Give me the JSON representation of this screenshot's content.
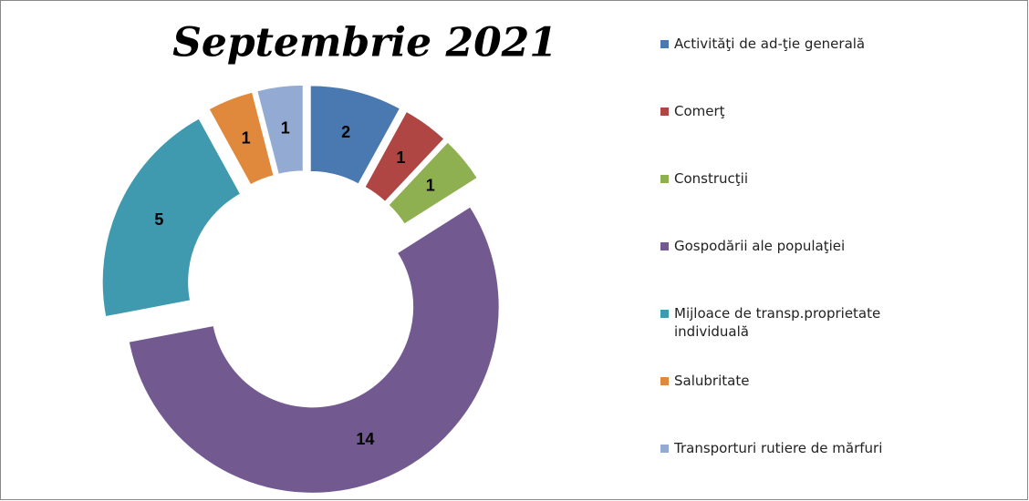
{
  "chart_data": {
    "type": "donut",
    "title": "Septembrie 2021",
    "categories": [
      "Activităţi de ad-ţie generală",
      "Comerţ",
      "Construcţii",
      "Gospodării ale populaţiei",
      "Mijloace de transp.proprietate individuală",
      "Salubritate",
      "Transporturi rutiere de mărfuri"
    ],
    "values": [
      2,
      1,
      1,
      14,
      5,
      1,
      1
    ],
    "colors": [
      "#4a78b0",
      "#b04644",
      "#8fb050",
      "#725a91",
      "#3f9ab0",
      "#e0883c",
      "#93aad3"
    ],
    "legend": "right"
  }
}
